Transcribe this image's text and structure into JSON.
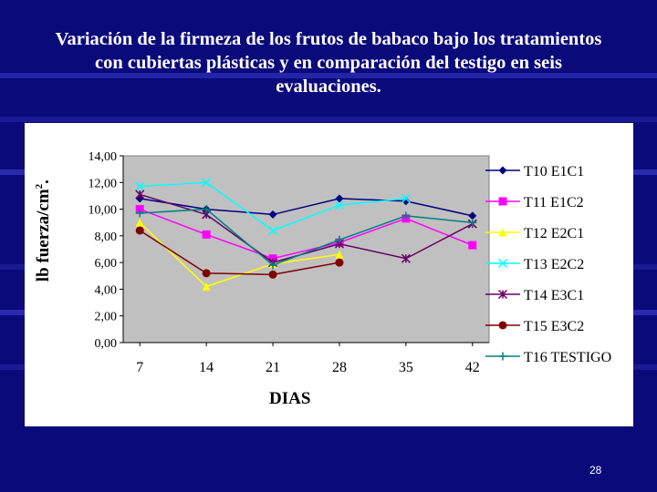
{
  "slide": {
    "title_lines": [
      "Variación de la firmeza de los frutos de babaco bajo los tratamientos",
      "con cubiertas plásticas y en comparación del testigo en seis",
      "evaluaciones."
    ],
    "page_number": "28"
  },
  "chart_data": {
    "type": "line",
    "x": [
      7,
      14,
      21,
      28,
      35,
      42
    ],
    "x_tick_labels": [
      "7",
      "14",
      "21",
      "28",
      "35",
      "42"
    ],
    "y_tick_labels": [
      "0,00",
      "2,00",
      "4,00",
      "6,00",
      "8,00",
      "10,00",
      "12,00",
      "14,00"
    ],
    "ylim": [
      0,
      14
    ],
    "ylabel_text": "lb fuerza/cm",
    "ylabel_superscript": "2",
    "xlabel": "DIAS",
    "grid": false,
    "plot_background": "#c0c0c0",
    "legend_position": "right",
    "series": [
      {
        "name": "T10 E1C1",
        "color": "#000080",
        "marker": "diamond",
        "values": [
          10.8,
          10.0,
          9.6,
          10.8,
          10.6,
          9.5
        ]
      },
      {
        "name": "T11 E1C2",
        "color": "#ff00ff",
        "marker": "square",
        "values": [
          10.0,
          8.1,
          6.3,
          7.5,
          9.3,
          7.3
        ]
      },
      {
        "name": "T12 E2C1",
        "color": "#ffff00",
        "marker": "triangle",
        "values": [
          9.0,
          4.2,
          5.9,
          6.6,
          null,
          null
        ]
      },
      {
        "name": "T13 E2C2",
        "color": "#00ffff",
        "marker": "x",
        "values": [
          11.7,
          12.0,
          8.4,
          10.3,
          10.8,
          null
        ]
      },
      {
        "name": "T14 E3C1",
        "color": "#660066",
        "marker": "star",
        "values": [
          11.1,
          9.6,
          6.0,
          7.4,
          6.3,
          8.9
        ]
      },
      {
        "name": "T15 E3C2",
        "color": "#800000",
        "marker": "circle",
        "values": [
          8.4,
          5.2,
          5.1,
          6.0,
          null,
          null
        ]
      },
      {
        "name": "T16 TESTIGO",
        "color": "#008080",
        "marker": "plus",
        "values": [
          9.7,
          10.0,
          5.8,
          7.7,
          9.5,
          9.0
        ]
      }
    ]
  }
}
